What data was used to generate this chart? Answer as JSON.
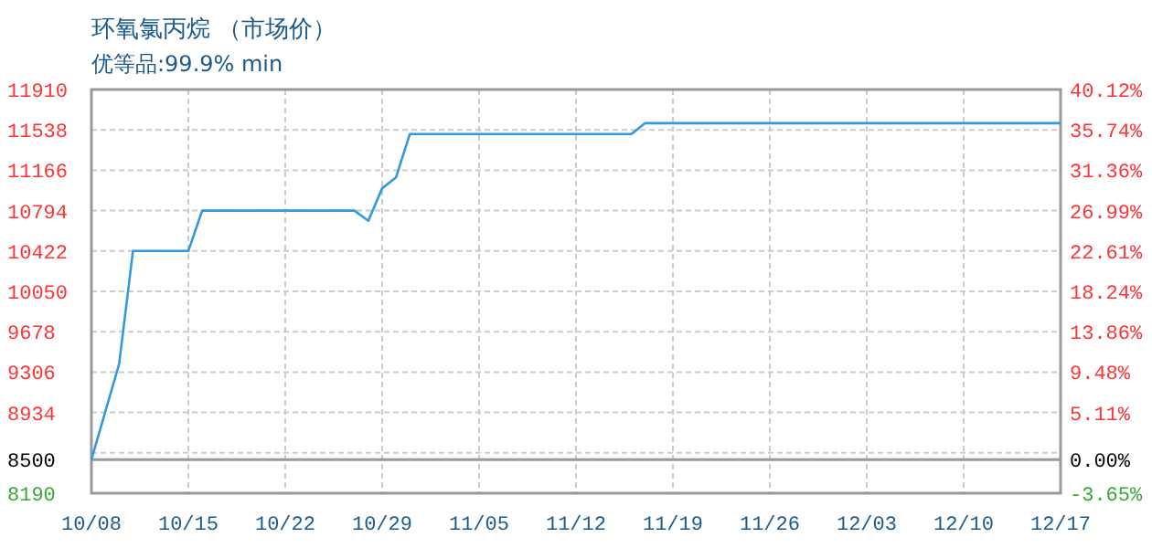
{
  "chart_data": {
    "type": "line",
    "title": "环氧氯丙烷 （市场价）",
    "subtitle": "优等品:99.9% min",
    "x": [
      "--10-08",
      "--10-10",
      "--10-11",
      "--10-15",
      "--10-16",
      "--10-27",
      "--10-28",
      "--10-29",
      "--10-30",
      "--10-31",
      "--11-16",
      "--11-17",
      "--12-17"
    ],
    "series": [
      {
        "color": "#3399dd",
        "values": [
          8500,
          9380,
          10422,
          10422,
          10794,
          10794,
          10700,
          11000,
          11100,
          11500,
          11500,
          11600,
          11600
        ]
      }
    ],
    "xlim": [
      "--10-08",
      "--12-17"
    ],
    "xticks": [
      {
        "value": "--10-08",
        "label": "10/08"
      },
      {
        "value": "--10-15",
        "label": "10/15"
      },
      {
        "value": "--10-22",
        "label": "10/22"
      },
      {
        "value": "--10-29",
        "label": "10/29"
      },
      {
        "value": "--11-05",
        "label": "11/05"
      },
      {
        "value": "--11-12",
        "label": "11/12"
      },
      {
        "value": "--11-19",
        "label": "11/19"
      },
      {
        "value": "--11-26",
        "label": "11/26"
      },
      {
        "value": "--12-03",
        "label": "12/03"
      },
      {
        "value": "--12-10",
        "label": "12/10"
      },
      {
        "value": "--12-17",
        "label": "12/17"
      }
    ],
    "ylim": [
      8190,
      11910
    ],
    "yticks": [
      8190,
      {
        "value": 8562,
        "label": null
      },
      8934,
      9306,
      9678,
      10050,
      10422,
      10794,
      11166,
      11538,
      11910
    ],
    "y2lim": [
      -3.65,
      40.12
    ],
    "y2ticks": [
      {
        "value": -3.65,
        "label": "-3.65%"
      },
      {
        "value": 0,
        "label": "0.00%"
      },
      {
        "value": 5.11,
        "label": "5.11%"
      },
      {
        "value": 9.48,
        "label": "9.48%"
      },
      {
        "value": 13.86,
        "label": "13.86%"
      },
      {
        "value": 18.24,
        "label": "18.24%"
      },
      {
        "value": 22.61,
        "label": "22.61%"
      },
      {
        "value": 26.99,
        "label": "26.99%"
      },
      {
        "value": 31.36,
        "label": "31.36%"
      },
      {
        "value": 35.74,
        "label": "35.74%"
      },
      {
        "value": 40.12,
        "label": "40.12%"
      }
    ],
    "ref_lines": [
      {
        "axis": "y",
        "value": 8500,
        "label": "8500",
        "color": "#999999"
      }
    ],
    "grid": true,
    "marker": "none",
    "line_style": "solid"
  }
}
